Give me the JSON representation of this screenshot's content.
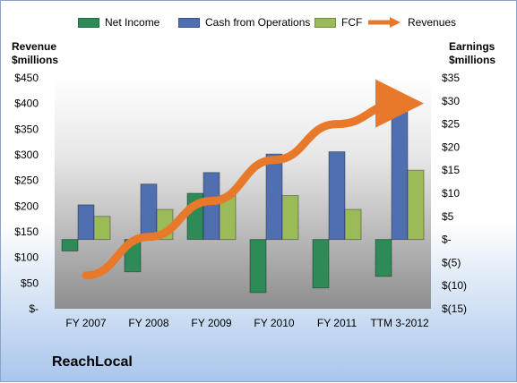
{
  "company": "ReachLocal",
  "colors": {
    "net_income": "#2e8b57",
    "cash_from_operations": "#4f6fb0",
    "fcf": "#9bbb59",
    "revenues": "#e8792b"
  },
  "chart_data": {
    "type": "bar",
    "categories": [
      "FY 2007",
      "FY 2008",
      "FY 2009",
      "FY 2010",
      "FY 2011",
      "TTM 3-2012"
    ],
    "series": [
      {
        "name": "Net Income",
        "axis": "right",
        "values": [
          -2.5,
          -7,
          10,
          -11.5,
          -10.5,
          -8
        ]
      },
      {
        "name": "Cash from Operations",
        "axis": "right",
        "values": [
          7.5,
          12,
          14.5,
          18.5,
          19,
          28.5
        ]
      },
      {
        "name": "FCF",
        "axis": "right",
        "values": [
          5,
          6.5,
          9.5,
          9.5,
          6.5,
          15
        ]
      },
      {
        "name": "Revenues",
        "axis": "left",
        "type": "line",
        "values": [
          65,
          140,
          210,
          290,
          360,
          400
        ]
      }
    ],
    "ylabel": "Revenue\n$millions",
    "y2label": "Earnings\n$millions",
    "ylim": [
      0,
      450
    ],
    "y2lim": [
      -15,
      35
    ],
    "yticks": [
      "$450",
      "$400",
      "$350",
      "$300",
      "$250",
      "$200",
      "$150",
      "$100",
      "$50",
      "$-"
    ],
    "y2ticks": [
      "$35",
      "$30",
      "$25",
      "$20",
      "$15",
      "$10",
      "$5",
      "$-",
      "$(5)",
      "$(10)",
      "$(15)"
    ],
    "legend_position": "top",
    "grid": false,
    "legend": [
      "Net Income",
      "Cash from Operations",
      "FCF",
      "Revenues"
    ]
  }
}
